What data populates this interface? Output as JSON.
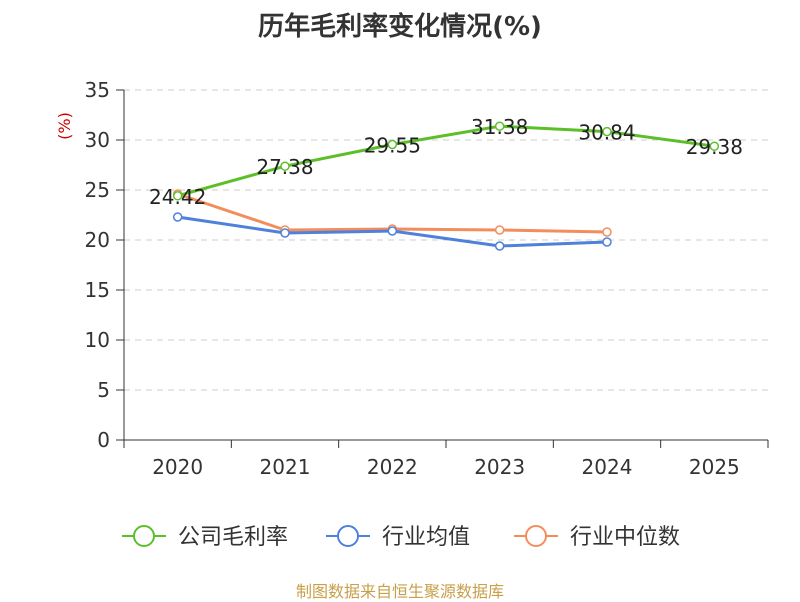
{
  "chart_data": {
    "type": "line",
    "title": "历年毛利率变化情况(%)",
    "ylabel": "(%)",
    "xlabel": "",
    "ylim": [
      0,
      35
    ],
    "yticks": [
      0,
      5,
      10,
      15,
      20,
      25,
      30,
      35
    ],
    "categories": [
      "2020",
      "2021",
      "2022",
      "2023",
      "2024",
      "2025"
    ],
    "grid": true,
    "legend_position": "bottom",
    "series": [
      {
        "name": "公司毛利率",
        "color": "#5cbf2a",
        "values": [
          24.42,
          27.38,
          29.55,
          31.38,
          30.84,
          29.38
        ],
        "labels": [
          "24.42",
          "27.38",
          "29.55",
          "31.38",
          "30.84",
          "29.38"
        ]
      },
      {
        "name": "行业均值",
        "color": "#4f81db",
        "values": [
          22.3,
          20.7,
          20.9,
          19.4,
          19.8,
          null
        ],
        "labels": []
      },
      {
        "name": "行业中位数",
        "color": "#f28e5c",
        "values": [
          24.6,
          21.0,
          21.1,
          21.0,
          20.8,
          null
        ],
        "labels": []
      }
    ]
  },
  "source_text": "制图数据来自恒生聚源数据库"
}
